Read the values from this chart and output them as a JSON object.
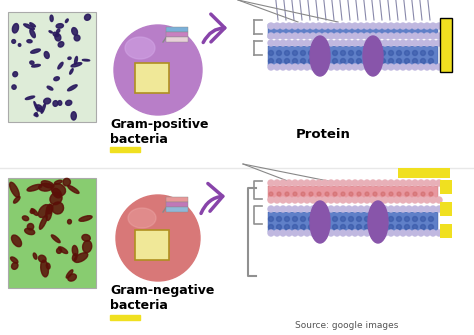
{
  "bg_color": "#ffffff",
  "top_label1": "Gram-positive",
  "top_label2": "bacteria",
  "bot_label1": "Gram-negative",
  "bot_label2": "bacteria",
  "protein_label": "Protein",
  "source_label": "Source: google images",
  "yellow_bar_color": "#f0e020",
  "gram_pos_cell_color": "#b87ec8",
  "gram_neg_cell_color": "#d87878",
  "gram_pos_micro_bg": "#deecd8",
  "gram_pos_micro_dots": "#2a1a5e",
  "gram_neg_micro_bg": "#88cc70",
  "gram_neg_micro_dots": "#5a1008",
  "arrow_color": "#8844aa",
  "membrane_blue": "#6080c8",
  "membrane_blue_dark": "#3858a8",
  "membrane_lilac": "#c0b8e0",
  "membrane_pink": "#e898a0",
  "protein_purple": "#8855aa",
  "yellow_highlight": "#f0e020",
  "bracket_color": "#909090",
  "divider_color": "#e8e8e8",
  "wall_color": "#f0e898",
  "wall_edge": "#b09020"
}
